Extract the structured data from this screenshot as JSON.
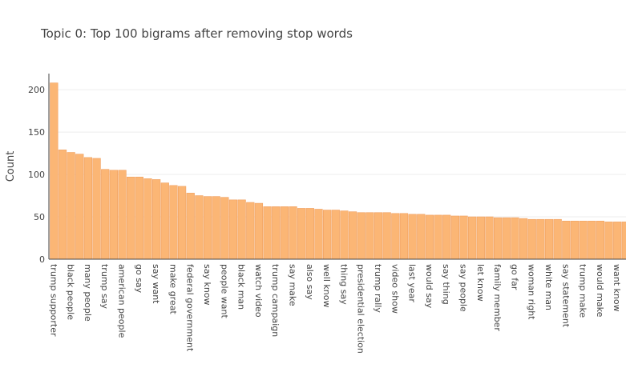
{
  "chart_data": {
    "type": "bar",
    "title": "Topic 0: Top 100 bigrams after removing stop words",
    "ylabel": "Count",
    "categories": [
      "trump supporter",
      null,
      "black people",
      null,
      "many people",
      null,
      "trump say",
      null,
      "american people",
      null,
      "go say",
      null,
      "say want",
      null,
      "make great",
      null,
      "federal government",
      null,
      "say know",
      null,
      "people want",
      null,
      "black man",
      null,
      "watch video",
      null,
      "trump campaign",
      null,
      "say make",
      null,
      "also say",
      null,
      "well know",
      null,
      "thing say",
      null,
      "presidential election",
      null,
      "trump rally",
      null,
      "video show",
      null,
      "last year",
      null,
      "would say",
      null,
      "say thing",
      null,
      "say people",
      null,
      "let know",
      null,
      "family member",
      null,
      "go far",
      null,
      "woman right",
      null,
      "white man",
      null,
      "say statement",
      null,
      "trump make",
      null,
      "would make",
      null,
      "want know",
      null
    ],
    "values": [
      208,
      129,
      126,
      124,
      120,
      119,
      106,
      105,
      105,
      97,
      97,
      95,
      94,
      90,
      87,
      86,
      78,
      75,
      74,
      74,
      73,
      70,
      70,
      67,
      66,
      62,
      62,
      62,
      62,
      60,
      60,
      59,
      58,
      58,
      57,
      56,
      55,
      55,
      55,
      55,
      54,
      54,
      53,
      53,
      52,
      52,
      52,
      51,
      51,
      50,
      50,
      50,
      49,
      49,
      49,
      48,
      47,
      47,
      47,
      47,
      45,
      45,
      45,
      45,
      45,
      44,
      44,
      44
    ],
    "color": "#fbb675",
    "ylim": [
      0,
      219
    ],
    "yticks": [
      0,
      50,
      100,
      150,
      200
    ],
    "grid": true
  }
}
